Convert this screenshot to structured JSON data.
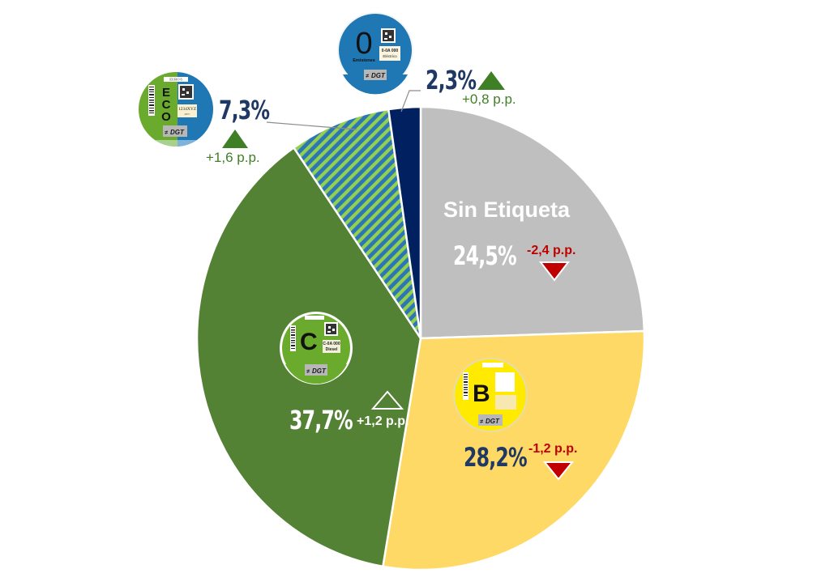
{
  "chart_data": {
    "type": "pie",
    "title": "",
    "start_angle_deg": 0,
    "direction": "clockwise",
    "categories": [
      "Sin Etiqueta",
      "B",
      "C",
      "ECO",
      "0 Emisiones"
    ],
    "values": [
      24.5,
      28.2,
      37.7,
      7.3,
      2.3
    ],
    "value_labels": [
      "24,5%",
      "28,2%",
      "37,7%",
      "7,3%",
      "2,3%"
    ],
    "changes_pp": [
      -2.4,
      -1.2,
      1.2,
      1.6,
      0.8
    ],
    "change_labels": [
      "-2,4 p.p.",
      "-1,2 p.p.",
      "+1,2 p.p.",
      "+1,6 p.p.",
      "+0,8 p.p."
    ],
    "change_direction": [
      "down",
      "down",
      "up",
      "up",
      "up"
    ],
    "colors": [
      "#bfbfbf",
      "#ffd966",
      "#548235",
      "striped #2e75b6/#92d050",
      "#002060"
    ],
    "legend": "none (labels on slices with DGT badge icons)"
  },
  "labels": {
    "sin_etiqueta": {
      "name": "Sin Etiqueta",
      "pct": "24,5%",
      "change": "-2,4 p.p."
    },
    "b": {
      "badge_letter": "B",
      "pct": "28,2%",
      "change": "-1,2 p.p."
    },
    "c": {
      "badge_letter": "C",
      "badge_plate": "C-0A 000",
      "badge_fuel": "Diesel",
      "pct": "37,7%",
      "change": "+1,2 p.p."
    },
    "eco": {
      "badge_letters": [
        "E",
        "C",
        "O"
      ],
      "badge_top": "EURO 6",
      "badge_plate": "1234XYZ",
      "badge_sub": "REV",
      "pct": "7,3%",
      "change": "+1,6 p.p."
    },
    "cero": {
      "badge_letter": "0",
      "badge_caption": "Emisiones",
      "badge_plate": "0-0A 000",
      "badge_fuel": "Eléctrico",
      "pct": "2,3%",
      "change": "+0,8 p.p."
    },
    "dgt": "DGT"
  },
  "colors": {
    "gray": "#bfbfbf",
    "yellow": "#ffd966",
    "green": "#548235",
    "navy": "#002060",
    "stripe_blue": "#2e75b6",
    "stripe_green": "#92d050",
    "up": "#3f7f26",
    "down": "#c00000",
    "pct_dark": "#1f3864"
  }
}
